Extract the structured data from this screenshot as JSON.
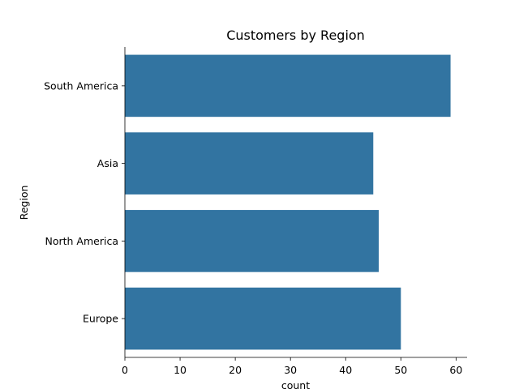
{
  "chart_data": {
    "type": "bar",
    "orientation": "horizontal",
    "title": "Customers by Region",
    "xlabel": "count",
    "ylabel": "Region",
    "categories": [
      "South America",
      "Asia",
      "North America",
      "Europe"
    ],
    "values": [
      59,
      45,
      46,
      50
    ],
    "xlim": [
      0,
      62
    ],
    "xticks": [
      0,
      10,
      20,
      30,
      40,
      50,
      60
    ],
    "grid": false,
    "bar_color": "#3274a1"
  }
}
